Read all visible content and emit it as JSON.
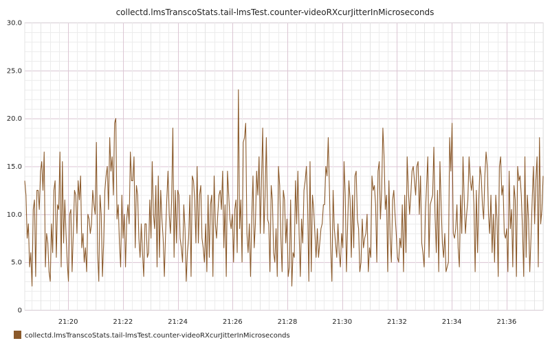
{
  "chart_data": {
    "type": "line",
    "title": "collectd.lmsTranscoStats.tail-lmsTest.counter-videoRXcurJitterInMicroseconds",
    "xlabel": "",
    "ylabel": "",
    "x_start": "21:18:25",
    "x_end": "21:37:20",
    "x_ticks": [
      "21:20",
      "21:22",
      "21:24",
      "21:26",
      "21:28",
      "21:30",
      "21:32",
      "21:34",
      "21:36"
    ],
    "ylim": [
      0,
      30
    ],
    "y_ticks": [
      "0",
      "5.0",
      "10.0",
      "15.0",
      "20.0",
      "25.0",
      "30.0"
    ],
    "grid": true,
    "legend_position": "bottom-left",
    "series": [
      {
        "name": "collectd.lmsTranscoStats.tail-lmsTest.counter-videoRXcurJitterInMicroseconds",
        "color": "#8b5a2b",
        "values": [
          13.5,
          12.0,
          7.5,
          9.0,
          4.5,
          6.0,
          2.5,
          10.5,
          11.5,
          3.5,
          12.5,
          12.5,
          10.5,
          14.5,
          15.5,
          12.5,
          16.5,
          4.5,
          8.0,
          7.0,
          4.0,
          3.0,
          9.0,
          6.0,
          12.5,
          13.5,
          5.5,
          11.0,
          10.5,
          16.5,
          4.5,
          15.5,
          7.0,
          11.5,
          8.0,
          5.0,
          3.0,
          10.0,
          10.5,
          4.0,
          8.0,
          12.5,
          12.0,
          8.0,
          13.5,
          11.5,
          14.0,
          6.5,
          8.0,
          5.0,
          6.5,
          4.0,
          10.0,
          9.5,
          8.0,
          9.0,
          12.5,
          11.0,
          10.0,
          17.5,
          6.0,
          3.0,
          12.0,
          10.0,
          3.5,
          7.0,
          12.5,
          14.0,
          15.0,
          10.5,
          18.0,
          14.5,
          16.0,
          12.0,
          19.5,
          20.0,
          9.5,
          11.0,
          7.0,
          4.5,
          12.0,
          7.5,
          10.0,
          4.5,
          9.5,
          11.0,
          9.0,
          16.5,
          13.5,
          13.5,
          16.0,
          6.5,
          13.0,
          12.0,
          7.5,
          5.5,
          9.0,
          6.0,
          3.5,
          9.0,
          9.0,
          5.5,
          6.0,
          11.5,
          7.5,
          15.5,
          10.0,
          8.5,
          13.0,
          4.5,
          14.0,
          5.5,
          12.5,
          9.5,
          7.5,
          3.5,
          8.0,
          11.5,
          14.5,
          10.0,
          8.0,
          11.5,
          19.0,
          5.5,
          12.5,
          7.0,
          12.5,
          12.0,
          7.5,
          6.5,
          5.0,
          11.0,
          8.5,
          3.0,
          6.0,
          7.5,
          12.0,
          3.5,
          14.0,
          13.5,
          11.5,
          7.0,
          15.0,
          7.0,
          12.0,
          13.0,
          7.5,
          6.5,
          5.0,
          9.0,
          4.0,
          12.0,
          5.5,
          11.0,
          12.0,
          3.5,
          14.0,
          9.0,
          7.5,
          10.0,
          12.0,
          12.5,
          10.5,
          14.5,
          6.5,
          11.0,
          3.5,
          14.5,
          12.0,
          9.5,
          8.5,
          10.0,
          5.0,
          10.5,
          11.5,
          6.0,
          23.0,
          8.5,
          11.5,
          5.0,
          17.5,
          18.0,
          19.5,
          8.0,
          6.0,
          9.0,
          3.5,
          9.5,
          14.0,
          6.5,
          9.0,
          14.5,
          12.0,
          16.0,
          8.0,
          13.5,
          19.0,
          8.0,
          12.0,
          18.0,
          9.5,
          9.0,
          4.0,
          13.0,
          11.5,
          6.0,
          5.0,
          8.5,
          3.5,
          15.0,
          13.0,
          7.5,
          4.0,
          12.5,
          11.5,
          7.0,
          9.5,
          3.5,
          4.5,
          11.5,
          2.5,
          6.0,
          5.5,
          13.5,
          9.0,
          14.5,
          8.0,
          3.5,
          9.5,
          7.0,
          12.5,
          13.5,
          15.0,
          11.0,
          3.0,
          15.5,
          4.0,
          12.0,
          10.5,
          8.0,
          5.5,
          8.5,
          5.5,
          7.0,
          8.5,
          9.0,
          11.0,
          11.0,
          15.0,
          14.0,
          18.0,
          12.5,
          6.5,
          3.0,
          12.5,
          8.5,
          7.0,
          5.5,
          9.0,
          6.0,
          4.5,
          8.0,
          6.5,
          15.5,
          12.0,
          4.0,
          9.0,
          13.5,
          11.5,
          5.5,
          12.0,
          6.5,
          14.0,
          14.5,
          9.5,
          8.5,
          4.0,
          5.0,
          9.5,
          6.5,
          7.5,
          8.0,
          10.0,
          4.0,
          6.5,
          5.5,
          14.0,
          12.5,
          13.0,
          11.0,
          5.0,
          14.5,
          15.5,
          9.5,
          12.5,
          19.0,
          16.0,
          10.5,
          12.0,
          4.0,
          13.5,
          7.5,
          5.0,
          11.5,
          12.5,
          10.0,
          8.0,
          5.5,
          5.0,
          7.5,
          6.5,
          11.0,
          4.0,
          12.0,
          6.0,
          16.0,
          12.5,
          10.0,
          12.0,
          14.5,
          15.0,
          13.5,
          12.0,
          15.0,
          15.5,
          10.0,
          14.0,
          7.0,
          6.0,
          4.5,
          10.0,
          13.0,
          16.0,
          5.5,
          11.0,
          11.5,
          12.0,
          17.0,
          10.0,
          6.0,
          12.5,
          4.0,
          15.5,
          11.0,
          7.0,
          5.5,
          8.0,
          4.0,
          4.5,
          5.0,
          18.0,
          14.5,
          19.5,
          8.0,
          7.5,
          8.5,
          11.0,
          6.5,
          4.5,
          12.0,
          8.0,
          16.0,
          11.5,
          8.0,
          10.0,
          11.5,
          16.0,
          13.5,
          12.5,
          14.0,
          11.0,
          4.0,
          12.5,
          6.0,
          11.5,
          15.0,
          14.0,
          11.0,
          9.5,
          14.0,
          16.5,
          15.0,
          10.0,
          8.0,
          12.0,
          6.0,
          10.0,
          5.0,
          12.0,
          9.5,
          3.5,
          15.0,
          16.0,
          12.0,
          13.0,
          8.0,
          7.5,
          8.5,
          4.0,
          14.5,
          8.5,
          10.5,
          4.5,
          13.0,
          11.5,
          3.5,
          15.0,
          13.5,
          14.0,
          12.0,
          8.5,
          3.5,
          16.0,
          5.5,
          12.0,
          9.5,
          4.0,
          7.5,
          11.5,
          15.0,
          9.0,
          13.5,
          16.0,
          4.5,
          18.0,
          9.0,
          10.5,
          14.0
        ]
      }
    ]
  }
}
